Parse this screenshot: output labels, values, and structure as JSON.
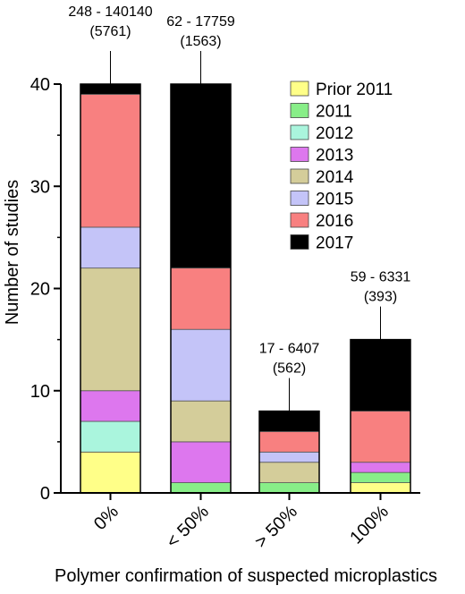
{
  "chart_data": {
    "type": "bar",
    "stacked": true,
    "xlabel": "Polymer confirmation of suspected microplastics",
    "ylabel": "Number of studies",
    "ylim": [
      0,
      40
    ],
    "yticks": [
      "0",
      "10",
      "20",
      "30",
      "40"
    ],
    "grid": false,
    "legend_position": "top-right",
    "categories": [
      "0%",
      "< 50%",
      "> 50%",
      "100%"
    ],
    "series": [
      {
        "name": "Prior 2011",
        "color": "#ffff88",
        "values": [
          4,
          0,
          0,
          1
        ]
      },
      {
        "name": "2011",
        "color": "#88ee88",
        "values": [
          0,
          1,
          1,
          1
        ]
      },
      {
        "name": "2012",
        "color": "#aaf5dd",
        "values": [
          3,
          0,
          0,
          0
        ]
      },
      {
        "name": "2013",
        "color": "#dd77ee",
        "values": [
          3,
          4,
          0,
          1
        ]
      },
      {
        "name": "2014",
        "color": "#d4cd9a",
        "values": [
          12,
          4,
          2,
          0
        ]
      },
      {
        "name": "2015",
        "color": "#c4c4f8",
        "values": [
          4,
          7,
          1,
          0
        ]
      },
      {
        "name": "2016",
        "color": "#f88080",
        "values": [
          13,
          6,
          2,
          5
        ]
      },
      {
        "name": "2017",
        "color": "#000000",
        "values": [
          1,
          18,
          2,
          7
        ]
      }
    ],
    "annotations": [
      {
        "range": "248 - 140140",
        "median": "(5761)"
      },
      {
        "range": "62 - 17759",
        "median": "(1563)"
      },
      {
        "range": "17 - 6407",
        "median": "(562)"
      },
      {
        "range": "59 - 6331",
        "median": "(393)"
      }
    ]
  }
}
